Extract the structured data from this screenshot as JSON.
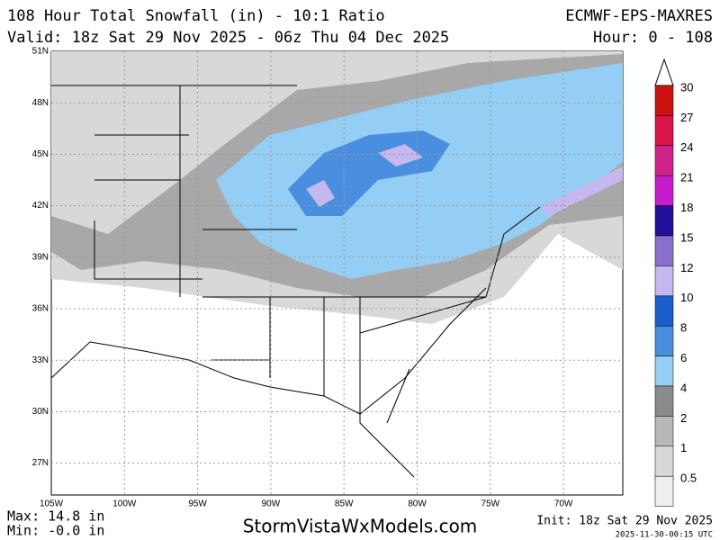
{
  "header": {
    "title": "108 Hour Total Snowfall (in) - 10:1 Ratio",
    "model": "ECMWF-EPS-MAXRES",
    "valid": "Valid: 18z Sat 29 Nov 2025 - 06z Thu 04 Dec 2025",
    "hour": "Hour: 0 - 108"
  },
  "map": {
    "lat_labels": [
      "51N",
      "48N",
      "45N",
      "42N",
      "39N",
      "36N",
      "33N",
      "30N",
      "27N"
    ],
    "lon_labels": [
      "105W",
      "100W",
      "95W",
      "90W",
      "85W",
      "80W",
      "75W",
      "70W"
    ]
  },
  "legend": {
    "levels": [
      {
        "label": "30",
        "color": "#cc1111"
      },
      {
        "label": "27",
        "color": "#d81448"
      },
      {
        "label": "24",
        "color": "#d0228a"
      },
      {
        "label": "21",
        "color": "#c81ccc"
      },
      {
        "label": "18",
        "color": "#22109a"
      },
      {
        "label": "15",
        "color": "#8870cc"
      },
      {
        "label": "12",
        "color": "#c4b8ee"
      },
      {
        "label": "10",
        "color": "#1a5ecc"
      },
      {
        "label": "8",
        "color": "#4a8ee0"
      },
      {
        "label": "6",
        "color": "#94cef4"
      },
      {
        "label": "4",
        "color": "#8a8a8a"
      },
      {
        "label": "2",
        "color": "#b8b8b8"
      },
      {
        "label": "1",
        "color": "#d8d8d8"
      },
      {
        "label": "0.5",
        "color": "#eeeeee"
      }
    ]
  },
  "footer": {
    "max": "Max: 14.8 in",
    "min": "Min: -0.0 in",
    "site": "StormVistaWxModels.com",
    "init": "Init: 18z Sat 29 Nov 2025",
    "stamp": "2025-11-30-00:15 UTC"
  }
}
